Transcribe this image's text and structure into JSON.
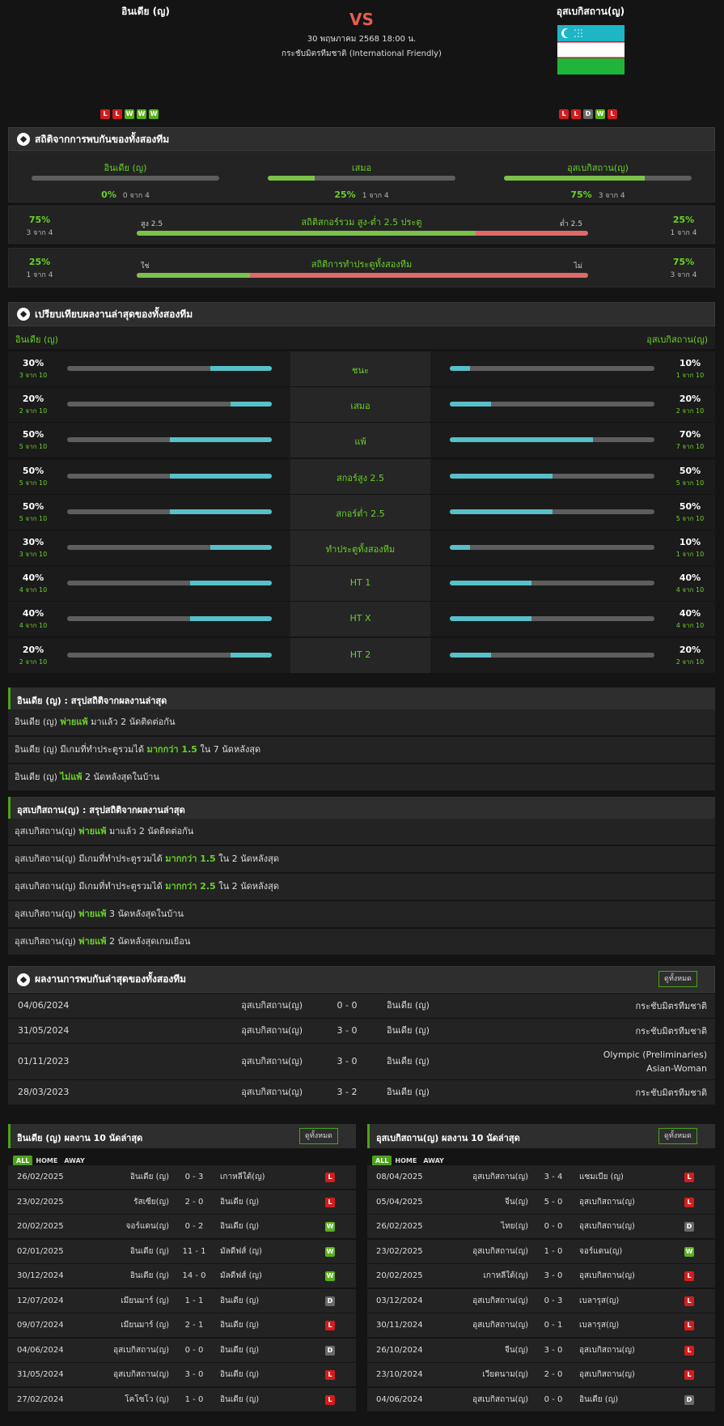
{
  "match": {
    "home": "อินเดีย (ญ)",
    "away": "อุสเบกิสถาน(ญ)",
    "vs": "VS",
    "datetime": "30 พฤษภาคม 2568 18:00 น.",
    "competition": "กระชับมิตรทีมชาติ (International Friendly)",
    "home_form": [
      "L",
      "L",
      "W",
      "W",
      "W"
    ],
    "away_form": [
      "L",
      "L",
      "D",
      "W",
      "L"
    ]
  },
  "h2h_stats": {
    "title": "สถิติจากการพบกันของทั้งสองทีม",
    "cols": [
      {
        "label": "อินเดีย (ญ)",
        "pct": "0%",
        "count": "0 จาก 4",
        "frac": 0
      },
      {
        "label": "เสมอ",
        "pct": "25%",
        "count": "1 จาก 4",
        "frac": 0.25
      },
      {
        "label": "อุสเบกิสถาน(ญ)",
        "pct": "75%",
        "count": "3 จาก 4",
        "frac": 0.75
      }
    ],
    "ou": {
      "left_pct": "75%",
      "left_count": "3 จาก 4",
      "left_label": "สูง 2.5",
      "title": "สถิติสกอร์รวม สูง-ต่ำ 2.5 ประตู",
      "right_label": "ต่ำ 2.5",
      "right_pct": "25%",
      "right_count": "1 จาก 4",
      "frac": 0.75
    },
    "btts": {
      "left_pct": "25%",
      "left_count": "1 จาก 4",
      "left_label": "ใช่",
      "title": "สถิติการทำประตูทั้งสองทีม",
      "right_label": "ไม่",
      "right_pct": "75%",
      "right_count": "3 จาก 4",
      "frac": 0.25
    }
  },
  "compare": {
    "title": "เปรียบเทียบผลงานล่าสุดของทั้งสองทีม",
    "home": "อินเดีย (ญ)",
    "away": "อุสเบกิสถาน(ญ)",
    "rows": [
      {
        "label": "ชนะ",
        "lp": "30%",
        "lc": "3 จาก 10",
        "lf": 0.3,
        "rp": "10%",
        "rc": "1 จาก 10",
        "rf": 0.1
      },
      {
        "label": "เสมอ",
        "lp": "20%",
        "lc": "2 จาก 10",
        "lf": 0.2,
        "rp": "20%",
        "rc": "2 จาก 10",
        "rf": 0.2
      },
      {
        "label": "แพ้",
        "lp": "50%",
        "lc": "5 จาก 10",
        "lf": 0.5,
        "rp": "70%",
        "rc": "7 จาก 10",
        "rf": 0.7
      },
      {
        "label": "สกอร์สูง 2.5",
        "lp": "50%",
        "lc": "5 จาก 10",
        "lf": 0.5,
        "rp": "50%",
        "rc": "5 จาก 10",
        "rf": 0.5
      },
      {
        "label": "สกอร์ต่ำ 2.5",
        "lp": "50%",
        "lc": "5 จาก 10",
        "lf": 0.5,
        "rp": "50%",
        "rc": "5 จาก 10",
        "rf": 0.5
      },
      {
        "label": "ทำประตูทั้งสองทีม",
        "lp": "30%",
        "lc": "3 จาก 10",
        "lf": 0.3,
        "rp": "10%",
        "rc": "1 จาก 10",
        "rf": 0.1
      },
      {
        "label": "HT 1",
        "lp": "40%",
        "lc": "4 จาก 10",
        "lf": 0.4,
        "rp": "40%",
        "rc": "4 จาก 10",
        "rf": 0.4
      },
      {
        "label": "HT X",
        "lp": "40%",
        "lc": "4 จาก 10",
        "lf": 0.4,
        "rp": "40%",
        "rc": "4 จาก 10",
        "rf": 0.4
      },
      {
        "label": "HT 2",
        "lp": "20%",
        "lc": "2 จาก 10",
        "lf": 0.2,
        "rp": "20%",
        "rc": "2 จาก 10",
        "rf": 0.2
      }
    ]
  },
  "summary_home": {
    "title": "อินเดีย (ญ) : สรุปสถิติจากผลงานล่าสุด",
    "lines": [
      [
        {
          "t": "อินเดีย (ญ) "
        },
        {
          "t": "พ่ายแพ้",
          "g": true
        },
        {
          "t": " มาแล้ว 2 นัดติดต่อกัน"
        }
      ],
      [
        {
          "t": "อินเดีย (ญ) มีเกมที่ทำประตูรวมได้ "
        },
        {
          "t": "มากกว่า 1.5",
          "g": true
        },
        {
          "t": " ใน 7 นัดหลังสุด"
        }
      ],
      [
        {
          "t": "อินเดีย (ญ) "
        },
        {
          "t": "ไม่แพ้",
          "g": true
        },
        {
          "t": " 2 นัดหลังสุดในบ้าน"
        }
      ]
    ]
  },
  "summary_away": {
    "title": "อุสเบกิสถาน(ญ) : สรุปสถิติจากผลงานล่าสุด",
    "lines": [
      [
        {
          "t": "อุสเบกิสถาน(ญ) "
        },
        {
          "t": "พ่ายแพ้",
          "g": true
        },
        {
          "t": " มาแล้ว 2 นัดติดต่อกัน"
        }
      ],
      [
        {
          "t": "อุสเบกิสถาน(ญ) มีเกมที่ทำประตูรวมได้ "
        },
        {
          "t": "มากกว่า 1.5",
          "g": true
        },
        {
          "t": " ใน 2 นัดหลังสุด"
        }
      ],
      [
        {
          "t": "อุสเบกิสถาน(ญ) มีเกมที่ทำประตูรวมได้ "
        },
        {
          "t": "มากกว่า 2.5",
          "g": true
        },
        {
          "t": " ใน 2 นัดหลังสุด"
        }
      ],
      [
        {
          "t": "อุสเบกิสถาน(ญ) "
        },
        {
          "t": "พ่ายแพ้",
          "g": true
        },
        {
          "t": " 3 นัดหลังสุดในบ้าน"
        }
      ],
      [
        {
          "t": "อุสเบกิสถาน(ญ) "
        },
        {
          "t": "พ่ายแพ้",
          "g": true
        },
        {
          "t": " 2 นัดหลังสุดเกมเยือน"
        }
      ]
    ]
  },
  "h2h_results": {
    "title": "ผลงานการพบกันล่าสุดของทั้งสองทีม",
    "see_all": "ดูทั้งหมด",
    "rows": [
      {
        "date": "04/06/2024",
        "home": "อุสเบกิสถาน(ญ)",
        "score": "0 - 0",
        "away": "อินเดีย (ญ)",
        "comp": [
          "กระชับมิตรทีมชาติ"
        ]
      },
      {
        "date": "31/05/2024",
        "home": "อุสเบกิสถาน(ญ)",
        "score": "3 - 0",
        "away": "อินเดีย (ญ)",
        "comp": [
          "กระชับมิตรทีมชาติ"
        ]
      },
      {
        "date": "01/11/2023",
        "home": "อุสเบกิสถาน(ญ)",
        "score": "3 - 0",
        "away": "อินเดีย (ญ)",
        "comp": [
          "Olympic (Preliminaries)",
          "Asian-Woman"
        ]
      },
      {
        "date": "28/03/2023",
        "home": "อุสเบกิสถาน(ญ)",
        "score": "3 - 2",
        "away": "อินเดีย (ญ)",
        "comp": [
          "กระชับมิตรทีมชาติ"
        ]
      }
    ]
  },
  "last10": {
    "tabs": [
      "ALL",
      "HOME",
      "AWAY"
    ],
    "see_all": "ดูทั้งหมด",
    "home": {
      "title": "อินเดีย (ญ) ผลงาน 10 นัดล่าสุด",
      "rows": [
        {
          "date": "26/02/2025",
          "home": "อินเดีย (ญ)",
          "score": "0 - 3",
          "away": "เกาหลีใต้(ญ)",
          "res": "L"
        },
        {
          "date": "23/02/2025",
          "home": "รัสเซีย(ญ)",
          "score": "2 - 0",
          "away": "อินเดีย (ญ)",
          "res": "L"
        },
        {
          "date": "20/02/2025",
          "home": "จอร์แดน(ญ)",
          "score": "0 - 2",
          "away": "อินเดีย (ญ)",
          "res": "W"
        },
        {
          "date": "02/01/2025",
          "home": "อินเดีย (ญ)",
          "score": "11 - 1",
          "away": "มัลดีฟส์ (ญ)",
          "res": "W"
        },
        {
          "date": "30/12/2024",
          "home": "อินเดีย (ญ)",
          "score": "14 - 0",
          "away": "มัลดีฟส์ (ญ)",
          "res": "W"
        },
        {
          "date": "12/07/2024",
          "home": "เมียนมาร์ (ญ)",
          "score": "1 - 1",
          "away": "อินเดีย (ญ)",
          "res": "D"
        },
        {
          "date": "09/07/2024",
          "home": "เมียนมาร์ (ญ)",
          "score": "2 - 1",
          "away": "อินเดีย (ญ)",
          "res": "L"
        },
        {
          "date": "04/06/2024",
          "home": "อุสเบกิสถาน(ญ)",
          "score": "0 - 0",
          "away": "อินเดีย (ญ)",
          "res": "D"
        },
        {
          "date": "31/05/2024",
          "home": "อุสเบกิสถาน(ญ)",
          "score": "3 - 0",
          "away": "อินเดีย (ญ)",
          "res": "L"
        },
        {
          "date": "27/02/2024",
          "home": "โคโซโว (ญ)",
          "score": "1 - 0",
          "away": "อินเดีย (ญ)",
          "res": "L"
        }
      ]
    },
    "away": {
      "title": "อุสเบกิสถาน(ญ) ผลงาน 10 นัดล่าสุด",
      "rows": [
        {
          "date": "08/04/2025",
          "home": "อุสเบกิสถาน(ญ)",
          "score": "3 - 4",
          "away": "แซมเบีย (ญ)",
          "res": "L"
        },
        {
          "date": "05/04/2025",
          "home": "จีน(ญ)",
          "score": "5 - 0",
          "away": "อุสเบกิสถาน(ญ)",
          "res": "L"
        },
        {
          "date": "26/02/2025",
          "home": "ไทย(ญ)",
          "score": "0 - 0",
          "away": "อุสเบกิสถาน(ญ)",
          "res": "D"
        },
        {
          "date": "23/02/2025",
          "home": "อุสเบกิสถาน(ญ)",
          "score": "1 - 0",
          "away": "จอร์แดน(ญ)",
          "res": "W"
        },
        {
          "date": "20/02/2025",
          "home": "เกาหลีใต้(ญ)",
          "score": "3 - 0",
          "away": "อุสเบกิสถาน(ญ)",
          "res": "L"
        },
        {
          "date": "03/12/2024",
          "home": "อุสเบกิสถาน(ญ)",
          "score": "0 - 3",
          "away": "เบลารุส(ญ)",
          "res": "L"
        },
        {
          "date": "30/11/2024",
          "home": "อุสเบกิสถาน(ญ)",
          "score": "0 - 1",
          "away": "เบลารุส(ญ)",
          "res": "L"
        },
        {
          "date": "26/10/2024",
          "home": "จีน(ญ)",
          "score": "3 - 0",
          "away": "อุสเบกิสถาน(ญ)",
          "res": "L"
        },
        {
          "date": "23/10/2024",
          "home": "เวียดนาม(ญ)",
          "score": "2 - 0",
          "away": "อุสเบกิสถาน(ญ)",
          "res": "L"
        },
        {
          "date": "04/06/2024",
          "home": "อุสเบกิสถาน(ญ)",
          "score": "0 - 0",
          "away": "อินเดีย (ญ)",
          "res": "D"
        }
      ]
    }
  },
  "colors": {
    "accent": "#6bd12a",
    "draw_bar": "#7cc24a",
    "loss_bar": "#e06a6a",
    "cyan": "#58c0c8",
    "vs": "#e65c4f"
  }
}
